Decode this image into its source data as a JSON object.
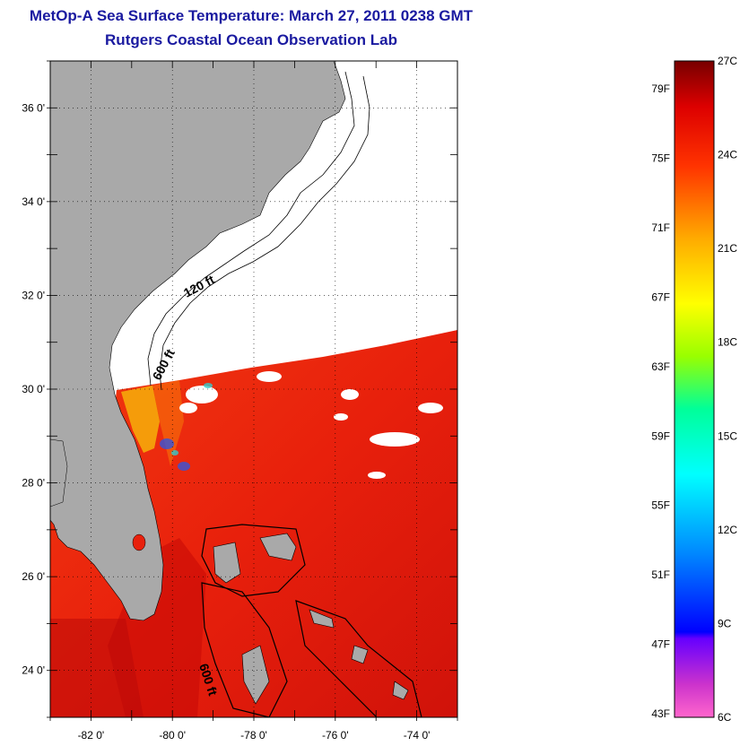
{
  "title": "MetOp-A Sea Surface Temperature:  March 27, 2011 0238 GMT",
  "subtitle": "Rutgers Coastal Ocean Observation Lab",
  "map": {
    "lon_range": [
      -83,
      -73
    ],
    "lat_range": [
      23,
      37
    ],
    "lat_ticks": [
      {
        "value": 24,
        "label": "24 0'"
      },
      {
        "value": 26,
        "label": "26 0'"
      },
      {
        "value": 28,
        "label": "28 0'"
      },
      {
        "value": 30,
        "label": "30 0'"
      },
      {
        "value": 32,
        "label": "32 0'"
      },
      {
        "value": 34,
        "label": "34 0'"
      },
      {
        "value": 36,
        "label": "36 0'"
      }
    ],
    "lon_ticks": [
      {
        "value": -82,
        "label": "-82 0'"
      },
      {
        "value": -80,
        "label": "-80 0'"
      },
      {
        "value": -78,
        "label": "-78 0'"
      },
      {
        "value": -76,
        "label": "-76 0'"
      },
      {
        "value": -74,
        "label": "-74 0'"
      }
    ],
    "isobaths": [
      {
        "label": "120 ft"
      },
      {
        "label": "600 ft"
      },
      {
        "label": "600 ft"
      }
    ],
    "colors": {
      "land": "#a9a9a9",
      "sea_warm": "#e8200c",
      "sea_hot": "#c80a06",
      "shelf_cool": "#f5a80a",
      "no_data": "#ffffff"
    }
  },
  "colorbar": {
    "fahrenheit": [
      "79F",
      "75F",
      "71F",
      "67F",
      "63F",
      "59F",
      "55F",
      "51F",
      "47F",
      "43F"
    ],
    "celsius": [
      "27C",
      "24C",
      "21C",
      "18C",
      "15C",
      "12C",
      "9C",
      "6C"
    ],
    "range_c": [
      6,
      27
    ]
  }
}
